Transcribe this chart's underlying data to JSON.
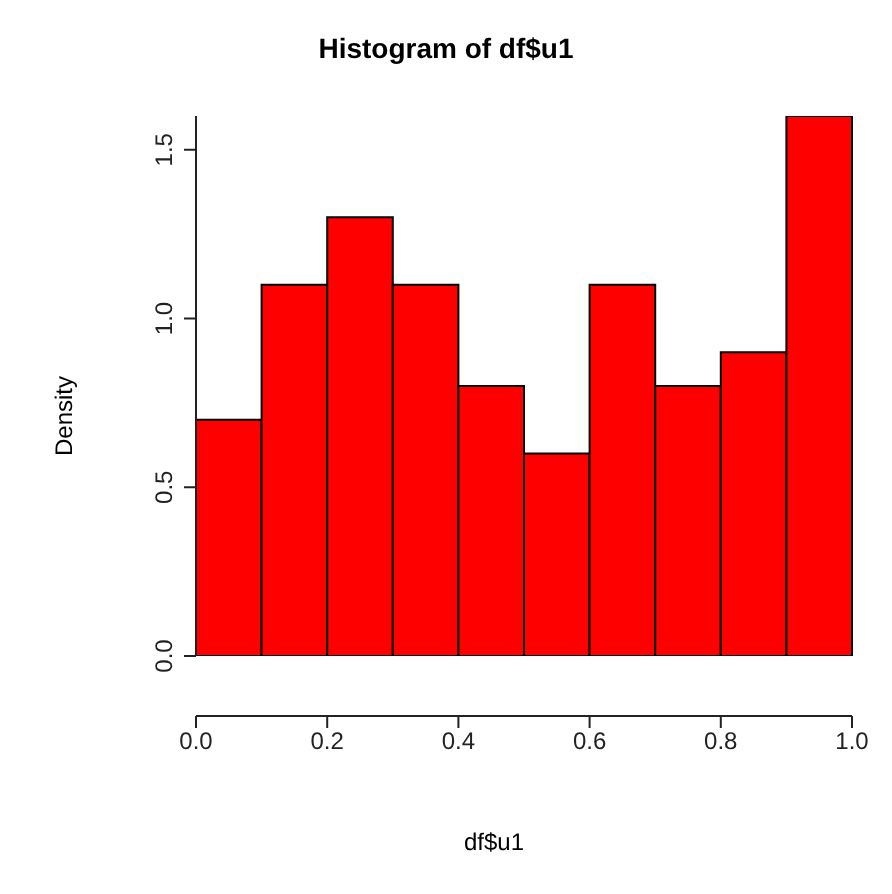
{
  "chart_data": {
    "type": "histogram",
    "title": "Histogram of df$u1",
    "xlabel": "df$u1",
    "ylabel": "Density",
    "color": "#ff0000",
    "bins": [
      0,
      0.1,
      0.2,
      0.3,
      0.4,
      0.5,
      0.6,
      0.7,
      0.8,
      0.9,
      1.0
    ],
    "values": [
      0.7,
      1.1,
      1.3,
      1.1,
      0.8,
      0.6,
      1.1,
      0.8,
      0.9,
      1.6
    ],
    "xlim": [
      0,
      1.0
    ],
    "xticks": [
      {
        "value": 0,
        "label": "0.0"
      },
      {
        "value": 0.2,
        "label": "0.2"
      },
      {
        "value": 0.4,
        "label": "0.4"
      },
      {
        "value": 0.6,
        "label": "0.6"
      },
      {
        "value": 0.8,
        "label": "0.8"
      },
      {
        "value": 1.0,
        "label": "1.0"
      }
    ],
    "ylim": [
      0,
      1.6
    ],
    "yticks": [
      {
        "value": 0,
        "label": "0.0"
      },
      {
        "value": 0.5,
        "label": "0.5"
      },
      {
        "value": 1.0,
        "label": "1.0"
      },
      {
        "value": 1.5,
        "label": "1.5"
      }
    ]
  }
}
